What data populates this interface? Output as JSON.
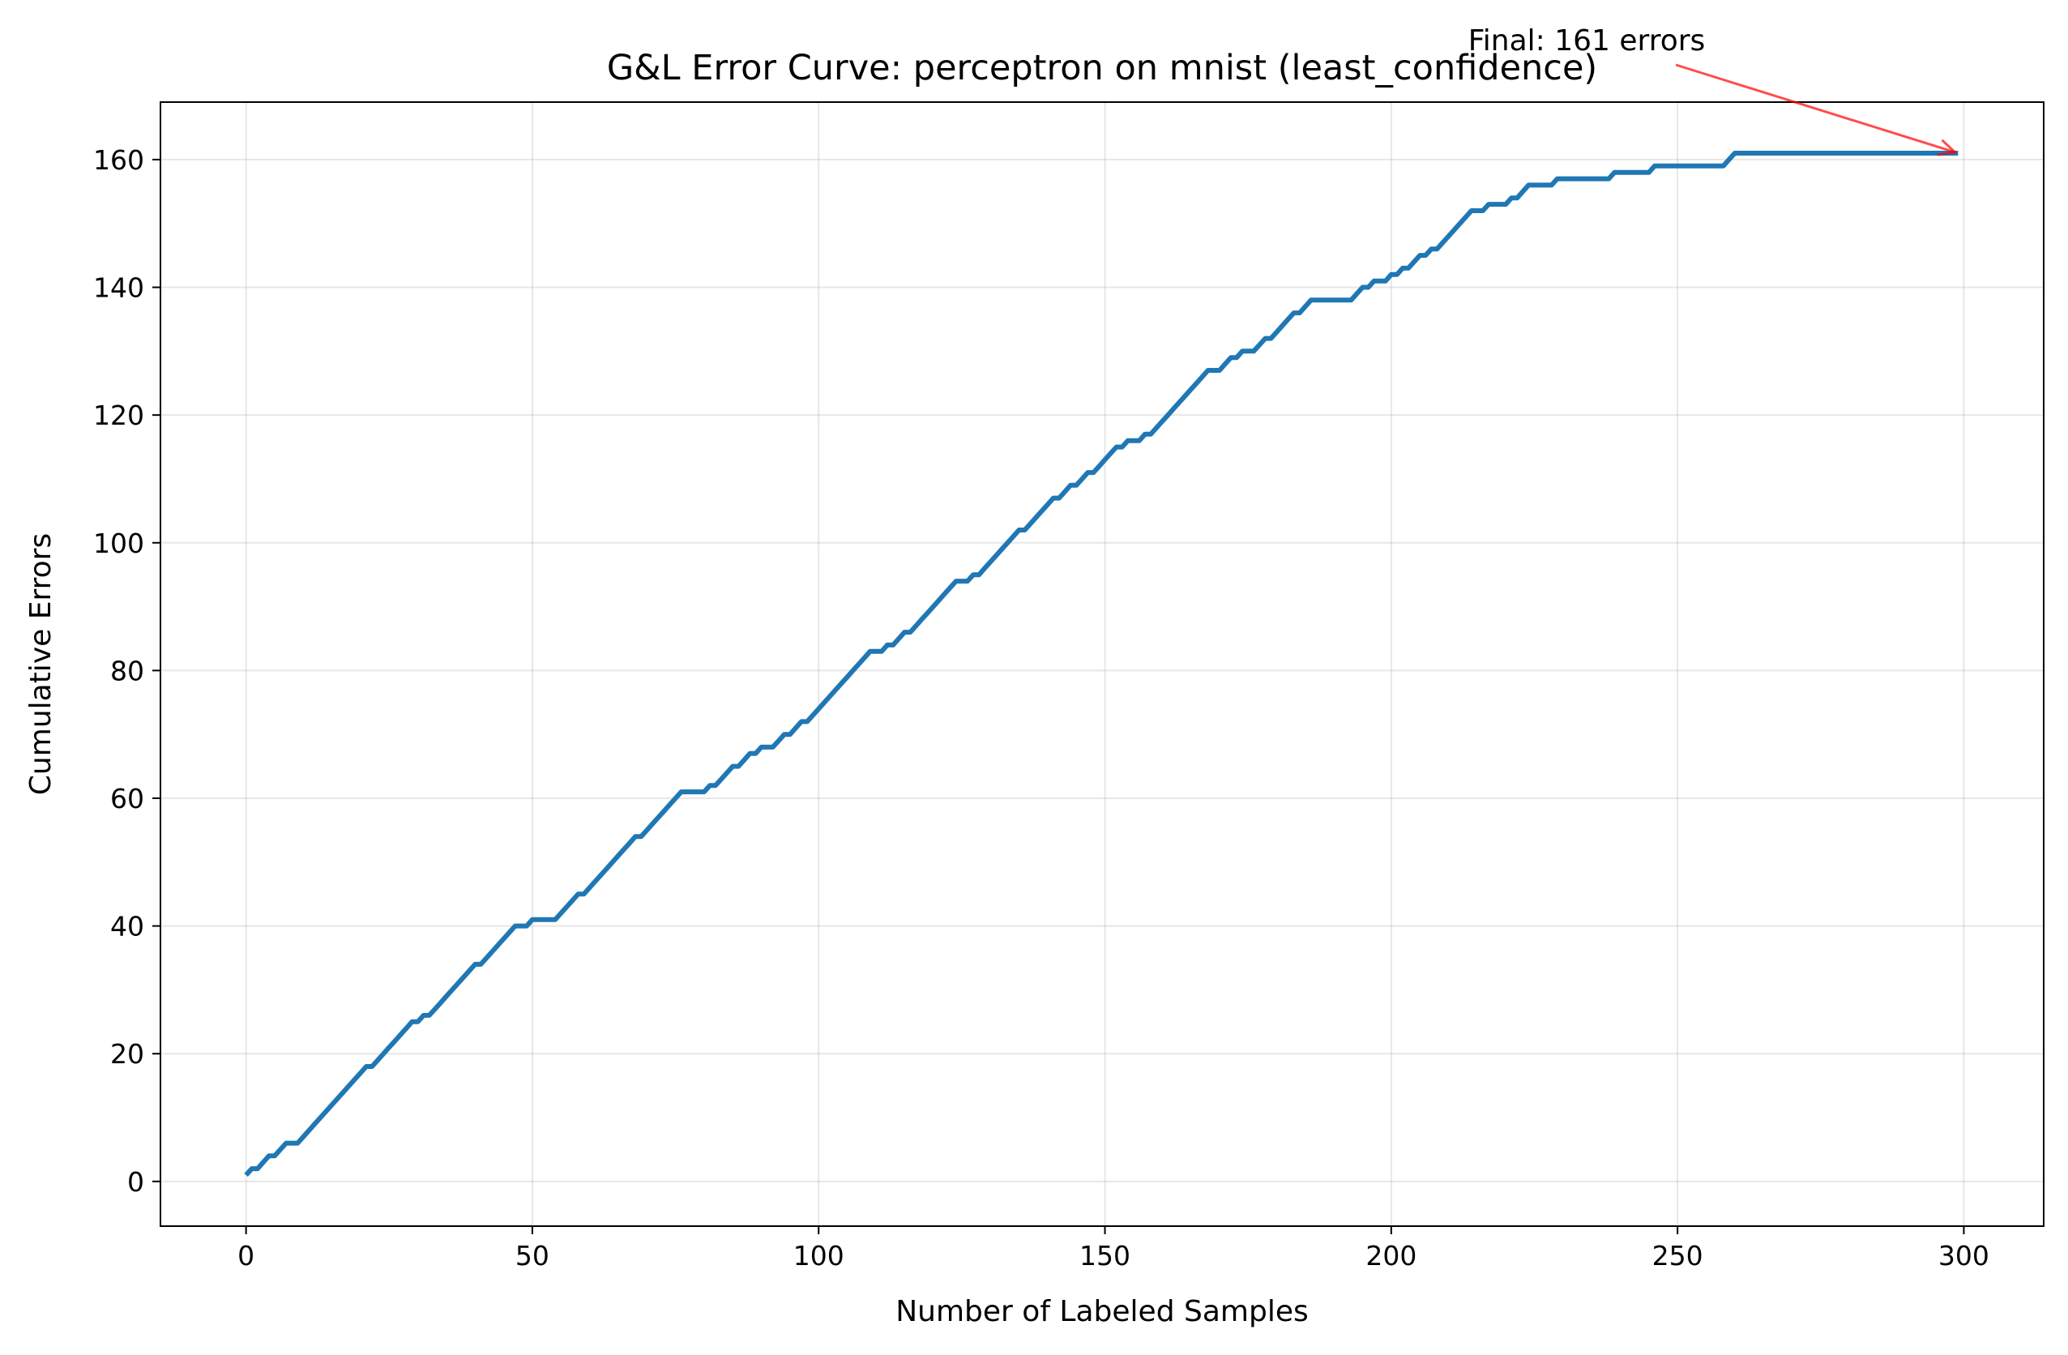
{
  "chart_data": {
    "type": "line",
    "title": "G&L Error Curve: perceptron on mnist (least_confidence)",
    "xlabel": "Number of Labeled Samples",
    "ylabel": "Cumulative Errors",
    "xlim": [
      -14.95,
      313.95
    ],
    "ylim": [
      -7.0,
      169.0
    ],
    "xticks": [
      0,
      50,
      100,
      150,
      200,
      250,
      300
    ],
    "yticks": [
      0,
      20,
      40,
      60,
      80,
      100,
      120,
      140,
      160
    ],
    "xtick_labels": [
      "0",
      "50",
      "100",
      "150",
      "200",
      "250",
      "300"
    ],
    "ytick_labels": [
      "0",
      "20",
      "40",
      "60",
      "80",
      "100",
      "120",
      "140",
      "160"
    ],
    "grid": true,
    "series": [
      {
        "color": "#1f77b4",
        "points": [
          [
            0,
            1
          ],
          [
            1,
            2
          ],
          [
            2,
            2
          ],
          [
            3,
            3
          ],
          [
            4,
            4
          ],
          [
            5,
            4
          ],
          [
            6,
            5
          ],
          [
            7,
            6
          ],
          [
            8,
            6
          ],
          [
            9,
            6
          ],
          [
            10,
            7
          ],
          [
            11,
            8
          ],
          [
            12,
            9
          ],
          [
            13,
            10
          ],
          [
            14,
            11
          ],
          [
            15,
            12
          ],
          [
            16,
            13
          ],
          [
            17,
            14
          ],
          [
            18,
            15
          ],
          [
            19,
            16
          ],
          [
            20,
            17
          ],
          [
            21,
            18
          ],
          [
            22,
            18
          ],
          [
            23,
            19
          ],
          [
            24,
            20
          ],
          [
            25,
            21
          ],
          [
            26,
            22
          ],
          [
            27,
            23
          ],
          [
            28,
            24
          ],
          [
            29,
            25
          ],
          [
            30,
            25
          ],
          [
            31,
            26
          ],
          [
            32,
            26
          ],
          [
            33,
            27
          ],
          [
            34,
            28
          ],
          [
            35,
            29
          ],
          [
            36,
            30
          ],
          [
            37,
            31
          ],
          [
            38,
            32
          ],
          [
            39,
            33
          ],
          [
            40,
            34
          ],
          [
            41,
            34
          ],
          [
            42,
            35
          ],
          [
            43,
            36
          ],
          [
            44,
            37
          ],
          [
            45,
            38
          ],
          [
            46,
            39
          ],
          [
            47,
            40
          ],
          [
            48,
            40
          ],
          [
            49,
            40
          ],
          [
            50,
            41
          ],
          [
            51,
            41
          ],
          [
            52,
            41
          ],
          [
            53,
            41
          ],
          [
            54,
            41
          ],
          [
            55,
            42
          ],
          [
            56,
            43
          ],
          [
            57,
            44
          ],
          [
            58,
            45
          ],
          [
            59,
            45
          ],
          [
            60,
            46
          ],
          [
            61,
            47
          ],
          [
            62,
            48
          ],
          [
            63,
            49
          ],
          [
            64,
            50
          ],
          [
            65,
            51
          ],
          [
            66,
            52
          ],
          [
            67,
            53
          ],
          [
            68,
            54
          ],
          [
            69,
            54
          ],
          [
            70,
            55
          ],
          [
            71,
            56
          ],
          [
            72,
            57
          ],
          [
            73,
            58
          ],
          [
            74,
            59
          ],
          [
            75,
            60
          ],
          [
            76,
            61
          ],
          [
            77,
            61
          ],
          [
            78,
            61
          ],
          [
            79,
            61
          ],
          [
            80,
            61
          ],
          [
            81,
            62
          ],
          [
            82,
            62
          ],
          [
            83,
            63
          ],
          [
            84,
            64
          ],
          [
            85,
            65
          ],
          [
            86,
            65
          ],
          [
            87,
            66
          ],
          [
            88,
            67
          ],
          [
            89,
            67
          ],
          [
            90,
            68
          ],
          [
            91,
            68
          ],
          [
            92,
            68
          ],
          [
            93,
            69
          ],
          [
            94,
            70
          ],
          [
            95,
            70
          ],
          [
            96,
            71
          ],
          [
            97,
            72
          ],
          [
            98,
            72
          ],
          [
            99,
            73
          ],
          [
            100,
            74
          ],
          [
            101,
            75
          ],
          [
            102,
            76
          ],
          [
            103,
            77
          ],
          [
            104,
            78
          ],
          [
            105,
            79
          ],
          [
            106,
            80
          ],
          [
            107,
            81
          ],
          [
            108,
            82
          ],
          [
            109,
            83
          ],
          [
            110,
            83
          ],
          [
            111,
            83
          ],
          [
            112,
            84
          ],
          [
            113,
            84
          ],
          [
            114,
            85
          ],
          [
            115,
            86
          ],
          [
            116,
            86
          ],
          [
            117,
            87
          ],
          [
            118,
            88
          ],
          [
            119,
            89
          ],
          [
            120,
            90
          ],
          [
            121,
            91
          ],
          [
            122,
            92
          ],
          [
            123,
            93
          ],
          [
            124,
            94
          ],
          [
            125,
            94
          ],
          [
            126,
            94
          ],
          [
            127,
            95
          ],
          [
            128,
            95
          ],
          [
            129,
            96
          ],
          [
            130,
            97
          ],
          [
            131,
            98
          ],
          [
            132,
            99
          ],
          [
            133,
            100
          ],
          [
            134,
            101
          ],
          [
            135,
            102
          ],
          [
            136,
            102
          ],
          [
            137,
            103
          ],
          [
            138,
            104
          ],
          [
            139,
            105
          ],
          [
            140,
            106
          ],
          [
            141,
            107
          ],
          [
            142,
            107
          ],
          [
            143,
            108
          ],
          [
            144,
            109
          ],
          [
            145,
            109
          ],
          [
            146,
            110
          ],
          [
            147,
            111
          ],
          [
            148,
            111
          ],
          [
            149,
            112
          ],
          [
            150,
            113
          ],
          [
            151,
            114
          ],
          [
            152,
            115
          ],
          [
            153,
            115
          ],
          [
            154,
            116
          ],
          [
            155,
            116
          ],
          [
            156,
            116
          ],
          [
            157,
            117
          ],
          [
            158,
            117
          ],
          [
            159,
            118
          ],
          [
            160,
            119
          ],
          [
            161,
            120
          ],
          [
            162,
            121
          ],
          [
            163,
            122
          ],
          [
            164,
            123
          ],
          [
            165,
            124
          ],
          [
            166,
            125
          ],
          [
            167,
            126
          ],
          [
            168,
            127
          ],
          [
            169,
            127
          ],
          [
            170,
            127
          ],
          [
            171,
            128
          ],
          [
            172,
            129
          ],
          [
            173,
            129
          ],
          [
            174,
            130
          ],
          [
            175,
            130
          ],
          [
            176,
            130
          ],
          [
            177,
            131
          ],
          [
            178,
            132
          ],
          [
            179,
            132
          ],
          [
            180,
            133
          ],
          [
            181,
            134
          ],
          [
            182,
            135
          ],
          [
            183,
            136
          ],
          [
            184,
            136
          ],
          [
            185,
            137
          ],
          [
            186,
            138
          ],
          [
            187,
            138
          ],
          [
            188,
            138
          ],
          [
            189,
            138
          ],
          [
            190,
            138
          ],
          [
            191,
            138
          ],
          [
            192,
            138
          ],
          [
            193,
            138
          ],
          [
            194,
            139
          ],
          [
            195,
            140
          ],
          [
            196,
            140
          ],
          [
            197,
            141
          ],
          [
            198,
            141
          ],
          [
            199,
            141
          ],
          [
            200,
            142
          ],
          [
            201,
            142
          ],
          [
            202,
            143
          ],
          [
            203,
            143
          ],
          [
            204,
            144
          ],
          [
            205,
            145
          ],
          [
            206,
            145
          ],
          [
            207,
            146
          ],
          [
            208,
            146
          ],
          [
            209,
            147
          ],
          [
            210,
            148
          ],
          [
            211,
            149
          ],
          [
            212,
            150
          ],
          [
            213,
            151
          ],
          [
            214,
            152
          ],
          [
            215,
            152
          ],
          [
            216,
            152
          ],
          [
            217,
            153
          ],
          [
            218,
            153
          ],
          [
            219,
            153
          ],
          [
            220,
            153
          ],
          [
            221,
            154
          ],
          [
            222,
            154
          ],
          [
            223,
            155
          ],
          [
            224,
            156
          ],
          [
            225,
            156
          ],
          [
            226,
            156
          ],
          [
            227,
            156
          ],
          [
            228,
            156
          ],
          [
            229,
            157
          ],
          [
            230,
            157
          ],
          [
            231,
            157
          ],
          [
            232,
            157
          ],
          [
            233,
            157
          ],
          [
            234,
            157
          ],
          [
            235,
            157
          ],
          [
            236,
            157
          ],
          [
            237,
            157
          ],
          [
            238,
            157
          ],
          [
            239,
            158
          ],
          [
            240,
            158
          ],
          [
            241,
            158
          ],
          [
            242,
            158
          ],
          [
            243,
            158
          ],
          [
            244,
            158
          ],
          [
            245,
            158
          ],
          [
            246,
            159
          ],
          [
            247,
            159
          ],
          [
            248,
            159
          ],
          [
            249,
            159
          ],
          [
            250,
            159
          ],
          [
            251,
            159
          ],
          [
            252,
            159
          ],
          [
            253,
            159
          ],
          [
            254,
            159
          ],
          [
            255,
            159
          ],
          [
            256,
            159
          ],
          [
            257,
            159
          ],
          [
            258,
            159
          ],
          [
            259,
            160
          ],
          [
            260,
            161
          ],
          [
            270,
            161
          ],
          [
            280,
            161
          ],
          [
            290,
            161
          ],
          [
            299,
            161
          ]
        ]
      }
    ],
    "annotation": {
      "text": "Final: 161 errors",
      "target": [
        299,
        161
      ],
      "arrow_color": "#ff0000"
    }
  }
}
